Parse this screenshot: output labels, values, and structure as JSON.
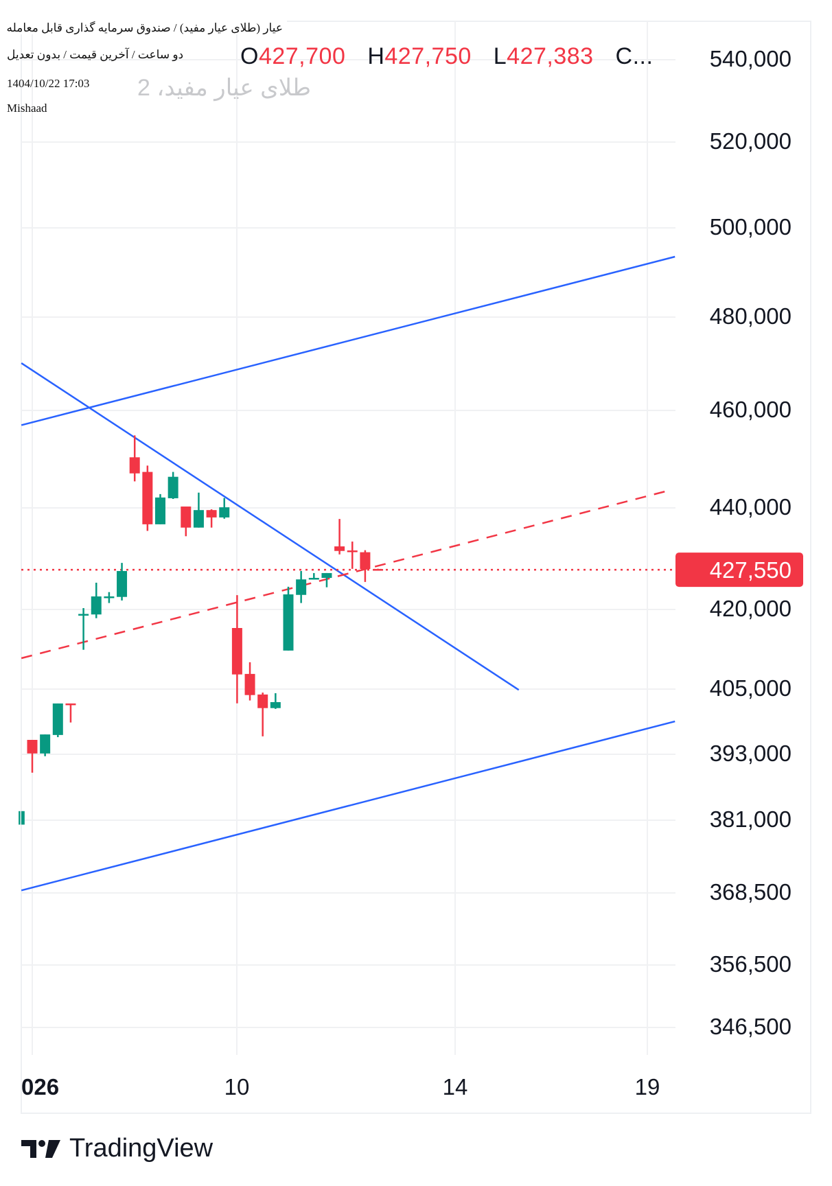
{
  "header": {
    "title_line": "عیار (طلای عیار مفید) / صندوق سرمایه گذاری قابل معامله",
    "subtitle_line": "دو ساعت / آخرین قیمت / بدون تعدیل",
    "ghost_symbol": "طلای عیار مفید، 2",
    "datetime": "1404/10/22 17:03",
    "author": "Mishaad",
    "ohlc": {
      "o_label": "O",
      "o": "427,700",
      "h_label": "H",
      "h": "427,750",
      "l_label": "L",
      "l": "427,383",
      "c_label": "C..."
    }
  },
  "branding": {
    "name": "TradingView"
  },
  "colors": {
    "up": "#089981",
    "down": "#F23645",
    "trendline": "#2962FF",
    "grid": "#F0F1F3",
    "text": "#131722"
  },
  "chart_data": {
    "type": "candlestick",
    "price_ticks": [
      "540,000",
      "520,000",
      "500,000",
      "480,000",
      "460,000",
      "440,000",
      "420,000",
      "405,000",
      "393,000",
      "381,000",
      "368,500",
      "356,500",
      "346,500"
    ],
    "price_tick_values": [
      540000,
      520000,
      500000,
      480000,
      460000,
      440000,
      420000,
      405000,
      393000,
      381000,
      368500,
      356500,
      346500
    ],
    "time_ticks": [
      {
        "label": "026",
        "bold": true,
        "index": 0
      },
      {
        "label": "10",
        "index": 16
      },
      {
        "label": "14",
        "index": 33
      },
      {
        "label": "19",
        "index": 48
      }
    ],
    "last_price": {
      "label": "427,550",
      "value": 427550
    },
    "candles": [
      {
        "i": -1,
        "o": 380000,
        "h": 382400,
        "l": 380000,
        "c": 382400
      },
      {
        "i": 0,
        "o": 395400,
        "h": 395400,
        "l": 389400,
        "c": 392900
      },
      {
        "i": 1,
        "o": 392900,
        "h": 396400,
        "l": 392400,
        "c": 396400
      },
      {
        "i": 2,
        "o": 396300,
        "h": 402100,
        "l": 395900,
        "c": 402100
      },
      {
        "i": 3,
        "o": 402100,
        "h": 402100,
        "l": 398600,
        "c": 401900
      },
      {
        "i": 4,
        "o": 418800,
        "h": 420000,
        "l": 412150,
        "c": 418900
      },
      {
        "i": 5,
        "o": 418800,
        "h": 425000,
        "l": 418100,
        "c": 422300
      },
      {
        "i": 6,
        "o": 422200,
        "h": 423150,
        "l": 421000,
        "c": 422300
      },
      {
        "i": 7,
        "o": 422200,
        "h": 428900,
        "l": 421500,
        "c": 427300
      },
      {
        "i": 8,
        "o": 450100,
        "h": 454600,
        "l": 445150,
        "c": 446800
      },
      {
        "i": 9,
        "o": 447100,
        "h": 448400,
        "l": 435200,
        "c": 436500
      },
      {
        "i": 10,
        "o": 436500,
        "h": 442550,
        "l": 436500,
        "c": 441850
      },
      {
        "i": 11,
        "o": 441700,
        "h": 447100,
        "l": 441550,
        "c": 446100
      },
      {
        "i": 12,
        "o": 440000,
        "h": 440000,
        "l": 434150,
        "c": 435850
      },
      {
        "i": 13,
        "o": 435850,
        "h": 442850,
        "l": 435850,
        "c": 439300
      },
      {
        "i": 14,
        "o": 439300,
        "h": 439450,
        "l": 435850,
        "c": 437850
      },
      {
        "i": 15,
        "o": 437850,
        "h": 441750,
        "l": 437600,
        "c": 439850
      },
      {
        "i": 16,
        "o": 416250,
        "h": 422550,
        "l": 402130,
        "c": 407500
      },
      {
        "i": 17,
        "o": 407600,
        "h": 409800,
        "l": 402650,
        "c": 403650
      },
      {
        "i": 18,
        "o": 403750,
        "h": 404100,
        "l": 396050,
        "c": 401250
      },
      {
        "i": 19,
        "o": 401250,
        "h": 403990,
        "l": 401100,
        "c": 402350
      },
      {
        "i": 20,
        "o": 412000,
        "h": 424200,
        "l": 412000,
        "c": 422700
      },
      {
        "i": 21,
        "o": 422600,
        "h": 427300,
        "l": 421000,
        "c": 425650
      },
      {
        "i": 22,
        "o": 425650,
        "h": 426900,
        "l": 425650,
        "c": 425950
      },
      {
        "i": 23,
        "o": 425950,
        "h": 426900,
        "l": 424100,
        "c": 426900
      },
      {
        "i": 24,
        "o": 432150,
        "h": 437550,
        "l": 430570,
        "c": 431250
      },
      {
        "i": 25,
        "o": 431350,
        "h": 433100,
        "l": 427730,
        "c": 431250
      },
      {
        "i": 26,
        "o": 431000,
        "h": 431400,
        "l": 425150,
        "c": 427700
      },
      {
        "i": 27,
        "o": 427700,
        "h": 427750,
        "l": 427383,
        "c": 427550
      }
    ],
    "trendlines": [
      {
        "style": "solid",
        "color": "#2962FF",
        "from": {
          "i": -0.85,
          "p": 456700
        },
        "to": {
          "i": 50.2,
          "p": 493230
        }
      },
      {
        "style": "solid",
        "color": "#2962FF",
        "from": {
          "i": -0.85,
          "p": 368700
        },
        "to": {
          "i": 50.2,
          "p": 398800
        }
      },
      {
        "style": "solid",
        "color": "#2962FF",
        "from": {
          "i": -0.85,
          "p": 469850
        },
        "to": {
          "i": 38.0,
          "p": 404600
        }
      },
      {
        "style": "dashed",
        "color": "#F23645",
        "from": {
          "i": -0.85,
          "p": 410560
        },
        "to": {
          "i": 49.7,
          "p": 443270
        }
      }
    ]
  }
}
